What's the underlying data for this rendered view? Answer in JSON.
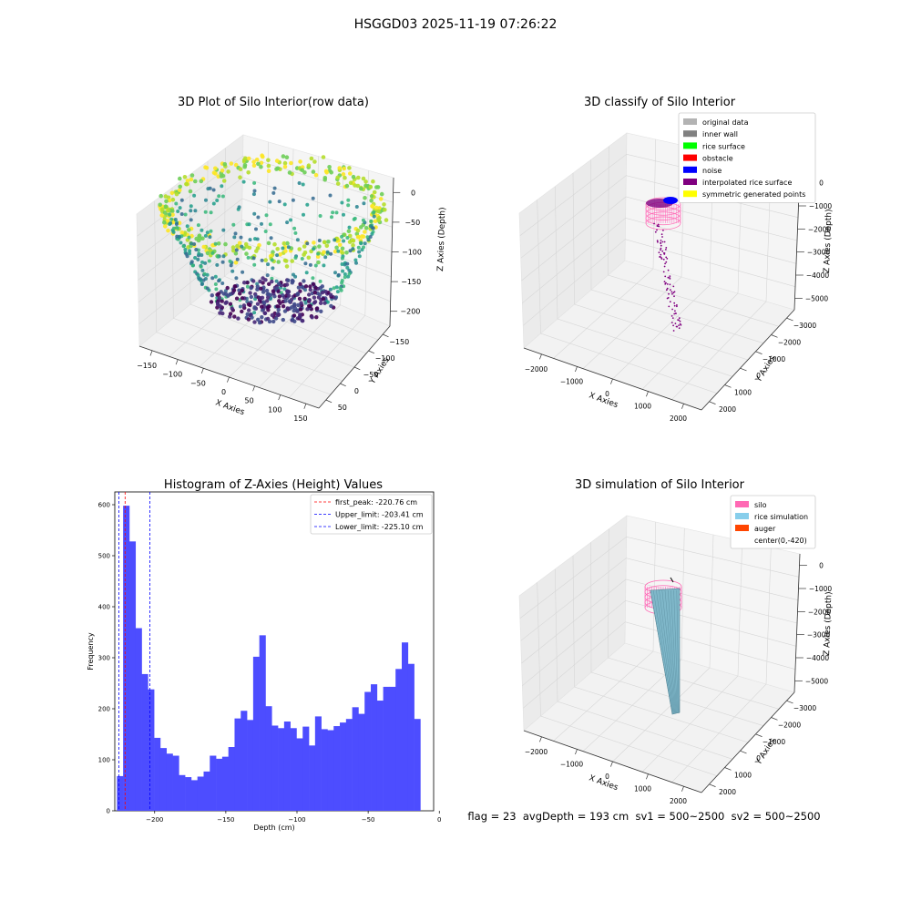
{
  "suptitle": "HSGGD03 2025-11-19 07:26:22",
  "status_line": "flag = 23  avgDepth = 193 cm  sv1 = 500~2500  sv2 = 500~2500",
  "panels": {
    "raw": {
      "title": "3D Plot of Silo Interior(row data)",
      "xlabel": "X Axies",
      "ylabel": "Y Axies",
      "zlabel": "Z Axies (Depth)",
      "xticks": [
        "−150",
        "−100",
        "−50",
        "0",
        "50",
        "100",
        "150"
      ],
      "yticks": [
        "50",
        "0",
        "−50",
        "−100",
        "−150"
      ],
      "zticks": [
        "0",
        "−50",
        "−100",
        "−150",
        "−200"
      ],
      "colormap": "viridis"
    },
    "classify": {
      "title": "3D classify of Silo Interior",
      "xlabel": "X Axies",
      "ylabel": "Y Axies",
      "zlabel": "Z Axies (Depth)",
      "xticks": [
        "−2000",
        "−1000",
        "0",
        "1000",
        "2000"
      ],
      "yticks": [
        "2000",
        "1000",
        "0",
        "−1000",
        "−2000",
        "−3000"
      ],
      "zticks": [
        "0",
        "−1000",
        "−2000",
        "−3000",
        "−4000",
        "−5000"
      ],
      "legend": [
        {
          "label": "original data",
          "color": "#b3b3b3"
        },
        {
          "label": "inner wall",
          "color": "#808080"
        },
        {
          "label": "rice surface",
          "color": "#00ff00"
        },
        {
          "label": "obstacle",
          "color": "#ff0000"
        },
        {
          "label": "noise",
          "color": "#0000ff"
        },
        {
          "label": "interpolated rice surface",
          "color": "#800080"
        },
        {
          "label": "symmetric generated points",
          "color": "#ffff00"
        }
      ]
    },
    "simulation": {
      "title": "3D simulation of Silo Interior",
      "xlabel": "X Axies",
      "ylabel": "Y Axies",
      "zlabel": "Z Axies (Depth)",
      "xticks": [
        "−2000",
        "−1000",
        "0",
        "1000",
        "2000"
      ],
      "yticks": [
        "2000",
        "1000",
        "0",
        "−1000",
        "−2000",
        "−3000"
      ],
      "zticks": [
        "0",
        "−1000",
        "−2000",
        "−3000",
        "−4000",
        "−5000"
      ],
      "legend": [
        {
          "label": "silo",
          "color": "#ff69b4"
        },
        {
          "label": "rice simulation",
          "color": "#87ceeb"
        },
        {
          "label": "auger",
          "color": "#ff4500"
        },
        {
          "label": "center(0,-420)",
          "color": "#ffffff"
        }
      ]
    }
  },
  "chart_data": {
    "type": "bar",
    "title": "Histogram of Z-Axies (Height) Values",
    "xlabel": "Depth (cm)",
    "ylabel": "Frequency",
    "xlim": [
      -228,
      -4
    ],
    "ylim": [
      0,
      625
    ],
    "xticks": [
      -200,
      -150,
      -100,
      -50,
      0
    ],
    "yticks": [
      0,
      100,
      200,
      300,
      400,
      500,
      600
    ],
    "bar_color": "#4d4dff",
    "bin_start": -226.5,
    "bin_width": 4.35,
    "values": [
      68,
      598,
      528,
      358,
      268,
      238,
      143,
      123,
      112,
      108,
      70,
      66,
      60,
      67,
      77,
      108,
      102,
      106,
      125,
      181,
      196,
      178,
      302,
      344,
      205,
      167,
      162,
      175,
      162,
      142,
      165,
      128,
      185,
      160,
      158,
      166,
      173,
      180,
      203,
      190,
      233,
      248,
      216,
      243,
      243,
      278,
      330,
      288,
      180
    ],
    "vlines": [
      {
        "label": "first_peak: -220.76 cm",
        "x": -220.76,
        "color": "#ff0000"
      },
      {
        "label": "Upper_limit: -203.41 cm",
        "x": -203.41,
        "color": "#0000ff"
      },
      {
        "label": "Lower_limit: -225.10 cm",
        "x": -225.1,
        "color": "#0000ff"
      }
    ],
    "legend_position": "top-right"
  }
}
